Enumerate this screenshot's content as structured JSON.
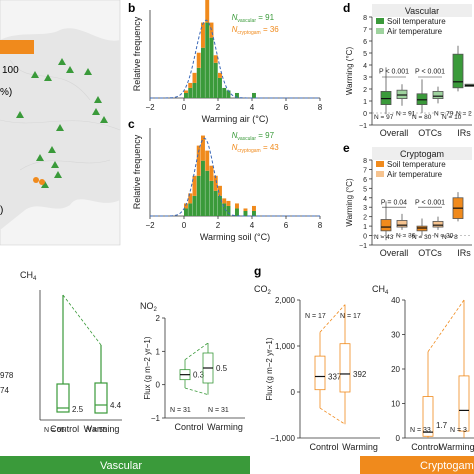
{
  "colors": {
    "vascular": "#3a9a3a",
    "vascular_light": "#9ed39e",
    "cryptogam": "#f08a1c",
    "cryptogam_light": "#f6c38f",
    "fit": "#3a68b8",
    "map_land": "#e6e6e6",
    "map_sea": "#f4f4f4"
  },
  "map": {
    "legend_value": "100",
    "pct_fragment": "%)",
    "paren_fragment": ")"
  },
  "panel_labels": {
    "b": "b",
    "c": "c",
    "d": "d",
    "e": "e",
    "g": "g"
  },
  "bottom_bar": {
    "vascular": "Vascular",
    "cryptogam": "Cryptogam"
  },
  "chart_data": [
    {
      "id": "b",
      "type": "bar",
      "xlabel": "Warming air (°C)",
      "ylabel": "Relative frequency",
      "xlim": [
        -2,
        8
      ],
      "xticks": [
        "−2",
        "0",
        "2",
        "4",
        "6",
        "8"
      ],
      "n_vascular_label": "N",
      "n_vascular_sub": "vascular",
      "n_vascular_value": " = 91",
      "n_cryptogam_label": "N",
      "n_cryptogam_sub": "cryptogam",
      "n_cryptogam_value": " = 36",
      "bin_width": 0.25,
      "bins_x": [
        0.0,
        0.25,
        0.5,
        0.75,
        1.0,
        1.25,
        1.5,
        1.75,
        2.0,
        2.25,
        2.5,
        3.0,
        4.0
      ],
      "vascular": [
        0.02,
        0.04,
        0.06,
        0.12,
        0.2,
        0.3,
        0.24,
        0.14,
        0.08,
        0.04,
        0.03,
        0.02,
        0.02
      ],
      "cryptogam": [
        0.01,
        0.02,
        0.04,
        0.06,
        0.1,
        0.12,
        0.06,
        0.03,
        0.02,
        0.0,
        0.0,
        0.0,
        0.0
      ],
      "fit_peak_x": 1.3,
      "fit_sd": 0.6
    },
    {
      "id": "c",
      "type": "bar",
      "xlabel": "Warming soil (°C)",
      "ylabel": "Relative frequency",
      "xlim": [
        -2,
        8
      ],
      "xticks": [
        "−2",
        "0",
        "2",
        "4",
        "6",
        "8"
      ],
      "n_vascular_label": "N",
      "n_vascular_sub": "vascular",
      "n_vascular_value": " = 97",
      "n_cryptogam_label": "N",
      "n_cryptogam_sub": "cryptogam",
      "n_cryptogam_value": " = 43",
      "bin_width": 0.25,
      "bins_x": [
        0.0,
        0.25,
        0.5,
        0.75,
        1.0,
        1.25,
        1.5,
        1.75,
        2.0,
        2.25,
        2.5,
        3.0,
        3.5,
        4.0
      ],
      "vascular": [
        0.03,
        0.05,
        0.08,
        0.16,
        0.22,
        0.18,
        0.14,
        0.1,
        0.08,
        0.05,
        0.04,
        0.03,
        0.02,
        0.02
      ],
      "cryptogam": [
        0.02,
        0.04,
        0.08,
        0.12,
        0.1,
        0.08,
        0.06,
        0.06,
        0.04,
        0.02,
        0.02,
        0.02,
        0.01,
        0.02
      ],
      "fit_peak_x": 1.2,
      "fit_sd": 0.55
    },
    {
      "id": "d",
      "type": "box",
      "title": "Vascular",
      "ylabel": "Warming (°C)",
      "ylim": [
        -1,
        8
      ],
      "yticks": [
        "−1",
        "0",
        "1",
        "2",
        "3",
        "4",
        "5",
        "6",
        "7",
        "8"
      ],
      "categories": [
        "Overall",
        "OTCs",
        "IRs"
      ],
      "series_names": [
        "Soil temperature",
        "Air temperature"
      ],
      "p_labels": [
        "P < 0.001",
        "P < 0.001"
      ],
      "n_labels": [
        "N = 97",
        "N = 91",
        "N = 80",
        "N = 79",
        "N = 10",
        "N = 2"
      ],
      "boxes": [
        {
          "q1": 0.7,
          "median": 1.2,
          "q3": 1.8,
          "whisker_low": -0.1,
          "whisker_high": 3.8
        },
        {
          "q1": 1.2,
          "median": 1.5,
          "q3": 1.9,
          "whisker_low": 0.6,
          "whisker_high": 2.4
        },
        {
          "q1": 0.7,
          "median": 1.1,
          "q3": 1.6,
          "whisker_low": 0.0,
          "whisker_high": 2.8
        },
        {
          "q1": 1.2,
          "median": 1.4,
          "q3": 1.8,
          "whisker_low": 0.8,
          "whisker_high": 2.2
        },
        {
          "q1": 2.1,
          "median": 2.6,
          "q3": 4.9,
          "whisker_low": 1.8,
          "whisker_high": 5.6
        },
        {
          "q1": 2.2,
          "median": 2.3,
          "q3": 2.4,
          "whisker_low": 2.2,
          "whisker_high": 2.4
        }
      ]
    },
    {
      "id": "e",
      "type": "box",
      "title": "Cryptogam",
      "ylabel": "Warming (°C)",
      "ylim": [
        -1,
        8
      ],
      "yticks": [
        "−1",
        "0",
        "1",
        "2",
        "3",
        "4",
        "5",
        "6",
        "7",
        "8"
      ],
      "categories": [
        "Overall",
        "OTCs",
        "IRs"
      ],
      "series_names": [
        "Soil temperature",
        "Air temperature"
      ],
      "p_labels": [
        "P = 0.04",
        "P < 0.001"
      ],
      "n_labels": [
        "N = 43",
        "N = 36",
        "N = 30",
        "N = 30",
        "N = 8"
      ],
      "boxes": [
        {
          "q1": 0.5,
          "median": 0.9,
          "q3": 1.7,
          "whisker_low": -0.5,
          "whisker_high": 3.6
        },
        {
          "q1": 0.9,
          "median": 1.1,
          "q3": 1.6,
          "whisker_low": 0.6,
          "whisker_high": 2.3
        },
        {
          "q1": 0.5,
          "median": 0.8,
          "q3": 1.0,
          "whisker_low": 0.0,
          "whisker_high": 1.8
        },
        {
          "q1": 0.9,
          "median": 1.1,
          "q3": 1.5,
          "whisker_low": 0.6,
          "whisker_high": 2.0
        },
        {
          "q1": 1.8,
          "median": 2.9,
          "q3": 4.0,
          "whisker_low": 1.5,
          "whisker_high": 4.6
        }
      ]
    },
    {
      "id": "f_ch4_vascular",
      "type": "box",
      "title": "CH4",
      "categories": [
        "Control",
        "Warming"
      ],
      "medians": [
        "2.5",
        "4.4"
      ],
      "n_labels": [
        "N = 55",
        "N = 55"
      ],
      "side_labels": [
        "978",
        "74"
      ]
    },
    {
      "id": "f_n2o_vascular",
      "type": "box",
      "title": "N2O",
      "ylabel": "Flux (g m−2 yr−1)",
      "ylim": [
        -1,
        2
      ],
      "yticks": [
        "−1",
        "0",
        "1",
        "2"
      ],
      "categories": [
        "Control",
        "Warming"
      ],
      "medians_values": [
        0.3,
        0.5
      ],
      "medians": [
        "0.3",
        "0.5"
      ],
      "n_labels": [
        "N = 31",
        "N = 31"
      ],
      "boxes": [
        {
          "q1": 0.15,
          "median": 0.3,
          "q3": 0.45,
          "whisker_low": -0.1,
          "whisker_high": 0.75
        },
        {
          "q1": 0.05,
          "median": 0.5,
          "q3": 0.95,
          "whisker_low": -0.3,
          "whisker_high": 1.25
        }
      ]
    },
    {
      "id": "g_co2_cryptogam",
      "type": "box",
      "title": "CO2",
      "ylabel": "Flux (g m−2 yr−1)",
      "ylim": [
        -1000,
        2000
      ],
      "yticks": [
        "−1,000",
        "0",
        "1,000",
        "2,000"
      ],
      "categories": [
        "Control",
        "Warming"
      ],
      "medians": [
        "337",
        "392"
      ],
      "n_labels": [
        "N = 17",
        "N = 17"
      ],
      "boxes": [
        {
          "q1": 50,
          "median": 337,
          "q3": 780,
          "whisker_low": -350,
          "whisker_high": 1300
        },
        {
          "q1": 0,
          "median": 392,
          "q3": 1050,
          "whisker_low": -700,
          "whisker_high": 1900
        }
      ]
    },
    {
      "id": "g_ch4_cryptogam",
      "type": "box",
      "title": "CH4",
      "ylim": [
        0,
        40
      ],
      "yticks": [
        "0",
        "10",
        "20",
        "30",
        "40"
      ],
      "categories": [
        "Control",
        "Warming"
      ],
      "medians": [
        "1.7"
      ],
      "n_labels": [
        "N = 33",
        "N = 3"
      ],
      "boxes": [
        {
          "q1": 0.5,
          "median": 1.7,
          "q3": 12,
          "whisker_low": 0,
          "whisker_high": 25
        },
        {
          "q1": 2,
          "median": 8,
          "q3": 18,
          "whisker_low": 0,
          "whisker_high": 40
        }
      ]
    }
  ]
}
